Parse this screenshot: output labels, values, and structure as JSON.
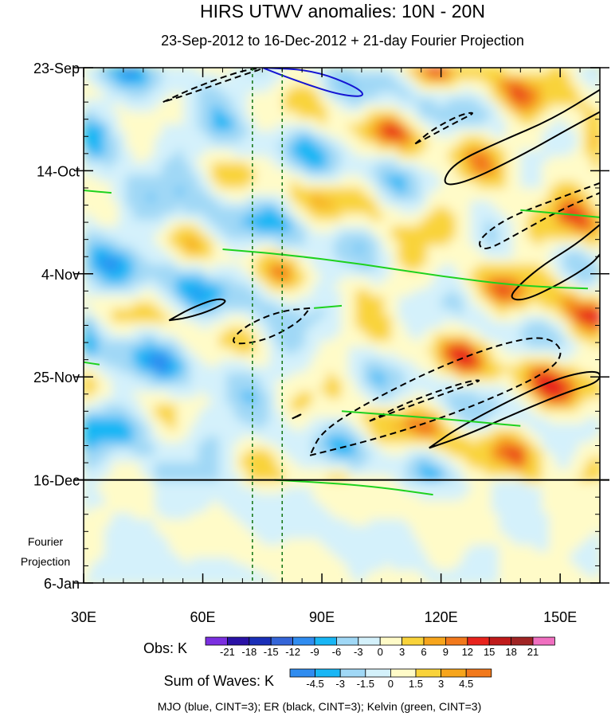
{
  "chart_data": {
    "type": "heatmap",
    "title": "HIRS UTWV anomalies: 10N - 20N",
    "subtitle": "23-Sep-2012 to 16-Dec-2012 + 21-day Fourier Projection",
    "x_axis": {
      "range": [
        30,
        160
      ],
      "ticks": [
        30,
        60,
        90,
        120,
        150
      ],
      "tick_labels": [
        "30E",
        "60E",
        "90E",
        "120E",
        "150E"
      ]
    },
    "y_axis": {
      "range_days": [
        0,
        105
      ],
      "ticks": [
        0,
        21,
        42,
        63,
        84,
        105
      ],
      "tick_labels": [
        "23-Sep",
        "14-Oct",
        "4-Nov",
        "25-Nov",
        "16-Dec",
        "6-Jan"
      ]
    },
    "projection_start_day": 84,
    "projection_label": [
      "Fourier",
      "Projection"
    ],
    "reference_longitudes": [
      72.5,
      80
    ],
    "obs_legend": {
      "label": "Obs: K",
      "levels": [
        "-21",
        "-18",
        "-15",
        "-12",
        "-9",
        "-6",
        "-3",
        "0",
        "3",
        "6",
        "9",
        "12",
        "15",
        "18",
        "21"
      ],
      "colors": [
        "#7b2fe0",
        "#2a12a6",
        "#1a2fb8",
        "#3465d8",
        "#2f8cf0",
        "#18b6f5",
        "#a0d8f6",
        "#d4f1fb",
        "#fffbc8",
        "#f9d33a",
        "#f7a51c",
        "#f2791c",
        "#e8231d",
        "#c01a1a",
        "#a02424",
        "#f06fc0"
      ]
    },
    "sum_legend": {
      "label": "Sum of Waves: K",
      "levels": [
        "-4.5",
        "-3",
        "-1.5",
        "0",
        "1.5",
        "3",
        "4.5"
      ],
      "colors": [
        "#2f8cf0",
        "#18b6f5",
        "#a0d8f6",
        "#d4f1fb",
        "#fffbc8",
        "#f9d33a",
        "#f7a51c",
        "#f2791c"
      ]
    },
    "footnote": "MJO (blue, CINT=3); ER (black, CINT=3); Kelvin (green, CINT=3)",
    "series": [
      {
        "name": "MJO",
        "color": "#1414d2",
        "contours": [
          {
            "lon": [
              75,
              88,
              99,
              101,
              94,
              83,
              75
            ],
            "day": [
              0,
              0.5,
              4,
              6,
              5.5,
              2.5,
              0
            ],
            "dash": false
          }
        ]
      },
      {
        "name": "ER",
        "color": "#000000",
        "contours": [
          {
            "lon": [
              50,
              58,
              70,
              76,
              70,
              56,
              50
            ],
            "day": [
              7,
              4,
              0.5,
              0,
              1.5,
              5.5,
              7
            ],
            "dash": true
          },
          {
            "lon": [
              113.5,
              118,
              125,
              129,
              124,
              116,
              113.5
            ],
            "day": [
              15.5,
              12.5,
              9.5,
              9,
              11,
              14.5,
              15.5
            ],
            "dash": true
          },
          {
            "lon": [
              160,
              148,
              135,
              123,
              120,
              126,
              140,
              152,
              160
            ],
            "day": [
              4.5,
              10.5,
              15,
              19.5,
              24,
              23.5,
              18,
              12.5,
              9
            ],
            "dash": false
          },
          {
            "lon": [
              160,
              150,
              140,
              134,
              129,
              131,
              140,
              150,
              160
            ],
            "day": [
              23.5,
              26.5,
              29.5,
              32,
              35.5,
              37.5,
              33.5,
              29,
              25.5
            ],
            "dash": true
          },
          {
            "lon": [
              160,
              154,
              146,
              140,
              137,
              141,
              150,
              158,
              160
            ],
            "day": [
              32,
              36,
              40,
              44,
              47,
              47.5,
              44,
              40,
              38
            ],
            "dash": false
          },
          {
            "lon": [
              51.5,
              57,
              63.5,
              66.5,
              62,
              56,
              51.5
            ],
            "day": [
              51.5,
              49,
              47,
              47.5,
              49.5,
              51,
              51.5
            ],
            "dash": false
          },
          {
            "lon": [
              87,
              80,
              72,
              67.5,
              68,
              76,
              84,
              87
            ],
            "day": [
              49,
              49.5,
              52,
              55,
              56.5,
              55.5,
              52,
              49
            ],
            "dash": true
          },
          {
            "lon": [
              87,
              102,
              118,
              134,
              148,
              151,
              146,
              134,
              118,
              102,
              90,
              87
            ],
            "day": [
              79,
              76,
              72,
              67,
              61.5,
              57.5,
              54.5,
              56.5,
              61.5,
              68,
              74,
              79
            ],
            "dash": true
          },
          {
            "lon": [
              102,
              112,
              124,
              131,
              126,
              112,
              102
            ],
            "day": [
              72,
              69,
              65.5,
              63.5,
              64,
              68,
              72
            ],
            "dash": true
          },
          {
            "lon": [
              117,
              126,
              140,
              152,
              160,
              160,
              150,
              138,
              124,
              117
            ],
            "day": [
              77.5,
              75,
              70,
              66,
              64,
              61.5,
              63,
              67.5,
              73.5,
              77.5
            ],
            "dash": false
          },
          {
            "lon": [
              82.5,
              85,
              84,
              82.5
            ],
            "day": [
              71.5,
              70.5,
              71,
              71.5
            ],
            "dash": false
          }
        ]
      },
      {
        "name": "Kelvin",
        "color": "#1ed21e",
        "contours": [
          {
            "lon": [
              30,
              37
            ],
            "day": [
              25,
              25.5
            ],
            "dash": false
          },
          {
            "lon": [
              65,
              80,
              100,
              120,
              140,
              157
            ],
            "day": [
              37,
              38,
              40,
              42.5,
              44.5,
              45
            ],
            "dash": false
          },
          {
            "lon": [
              88,
              95
            ],
            "day": [
              49,
              48.5
            ],
            "dash": false
          },
          {
            "lon": [
              30,
              34
            ],
            "day": [
              60,
              60.5
            ],
            "dash": false
          },
          {
            "lon": [
              95,
              120,
              140
            ],
            "day": [
              70,
              71.5,
              73
            ],
            "dash": false
          },
          {
            "lon": [
              78,
              100,
              118
            ],
            "day": [
              84,
              85,
              87
            ],
            "dash": false
          },
          {
            "lon": [
              140,
              160
            ],
            "day": [
              29,
              30.5
            ],
            "dash": false
          }
        ]
      }
    ]
  }
}
